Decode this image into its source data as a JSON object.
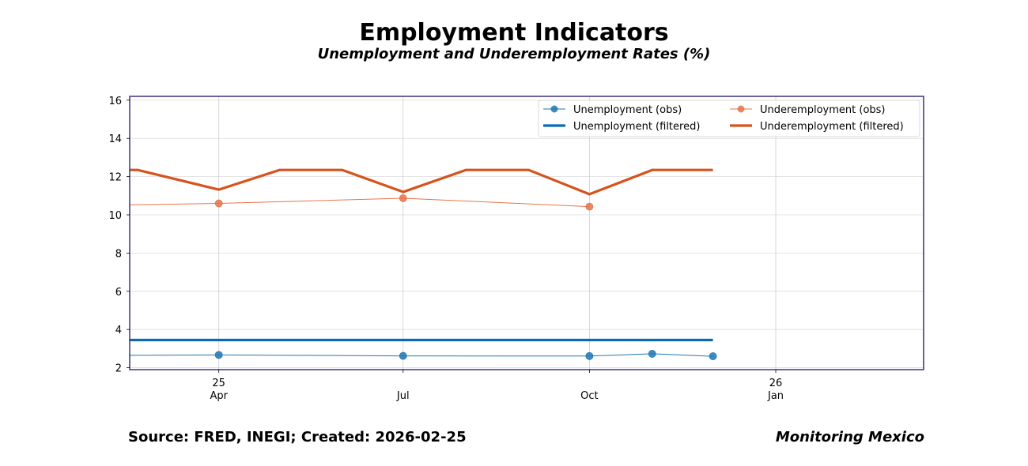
{
  "chart_data": {
    "type": "line",
    "title": "Employment Indicators",
    "subtitle": "Unemployment and Underemployment Rates (%)",
    "xlabel": "",
    "ylabel": "",
    "ylim": [
      1.9,
      16.2
    ],
    "y_ticks": [
      2,
      4,
      6,
      8,
      10,
      12,
      14,
      16
    ],
    "x_range": [
      "2025-02-16",
      "2026-03-15"
    ],
    "x_ticks": [
      {
        "date": "2025-04-01",
        "label": "25",
        "sublabel": "Apr"
      },
      {
        "date": "2025-07-01",
        "label": "",
        "sublabel": "Jul"
      },
      {
        "date": "2025-10-01",
        "label": "",
        "sublabel": "Oct"
      },
      {
        "date": "2026-01-01",
        "label": "26",
        "sublabel": "Jan"
      }
    ],
    "grid": true,
    "legend_position": "top-right",
    "colors": {
      "unemployment": "#1f77b4",
      "unemployment_filtered": "#0a6ab8",
      "underemployment": "#e8734a",
      "underemployment_filtered": "#d6531c",
      "frame": "#483d8b"
    },
    "series": [
      {
        "key": "unemployment",
        "name": "Unemployment (obs)",
        "style": "obs",
        "points": [
          {
            "x": "2025-02-16",
            "y": 2.65,
            "marker": false
          },
          {
            "x": "2025-04-01",
            "y": 2.67,
            "marker": true
          },
          {
            "x": "2025-07-01",
            "y": 2.62,
            "marker": true
          },
          {
            "x": "2025-10-01",
            "y": 2.61,
            "marker": true
          },
          {
            "x": "2025-11-01",
            "y": 2.73,
            "marker": true
          },
          {
            "x": "2025-12-01",
            "y": 2.6,
            "marker": true
          }
        ]
      },
      {
        "key": "unemployment_filtered",
        "name": "Unemployment (filtered)",
        "style": "filtered",
        "points": [
          {
            "x": "2025-02-16",
            "y": 3.45
          },
          {
            "x": "2025-12-01",
            "y": 3.45
          }
        ]
      },
      {
        "key": "underemployment",
        "name": "Underemployment (obs)",
        "style": "obs",
        "points": [
          {
            "x": "2025-02-16",
            "y": 10.52,
            "marker": false
          },
          {
            "x": "2025-04-01",
            "y": 10.6,
            "marker": true
          },
          {
            "x": "2025-07-01",
            "y": 10.87,
            "marker": true
          },
          {
            "x": "2025-10-01",
            "y": 10.43,
            "marker": true
          }
        ]
      },
      {
        "key": "underemployment_filtered",
        "name": "Underemployment (filtered)",
        "style": "filtered",
        "points": [
          {
            "x": "2025-02-16",
            "y": 12.35
          },
          {
            "x": "2025-02-20",
            "y": 12.35
          },
          {
            "x": "2025-04-01",
            "y": 11.32
          },
          {
            "x": "2025-05-01",
            "y": 12.35
          },
          {
            "x": "2025-06-01",
            "y": 12.35
          },
          {
            "x": "2025-07-01",
            "y": 11.2
          },
          {
            "x": "2025-08-01",
            "y": 12.35
          },
          {
            "x": "2025-09-01",
            "y": 12.35
          },
          {
            "x": "2025-10-01",
            "y": 11.08
          },
          {
            "x": "2025-11-01",
            "y": 12.35
          },
          {
            "x": "2025-12-01",
            "y": 12.35
          }
        ]
      }
    ]
  },
  "footer": {
    "source": "Source: FRED, INEGI; Created: 2026-02-25",
    "brand": "Monitoring Mexico"
  }
}
